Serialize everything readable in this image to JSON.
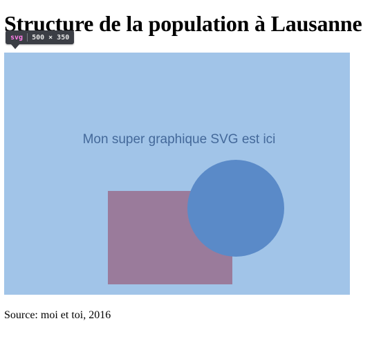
{
  "page": {
    "title": "Structure de la population à Lausanne",
    "source": "Source: moi et toi, 2016"
  },
  "inspector_tooltip": {
    "tag": "svg",
    "dimensions": "500 × 350"
  },
  "graphic": {
    "caption": "Mon super graphique SVG est ici",
    "colors": {
      "background": "#a1c4e8",
      "caption": "#44699a",
      "rectangle": "#9a7b9b",
      "circle": "#5a8ac8"
    }
  }
}
